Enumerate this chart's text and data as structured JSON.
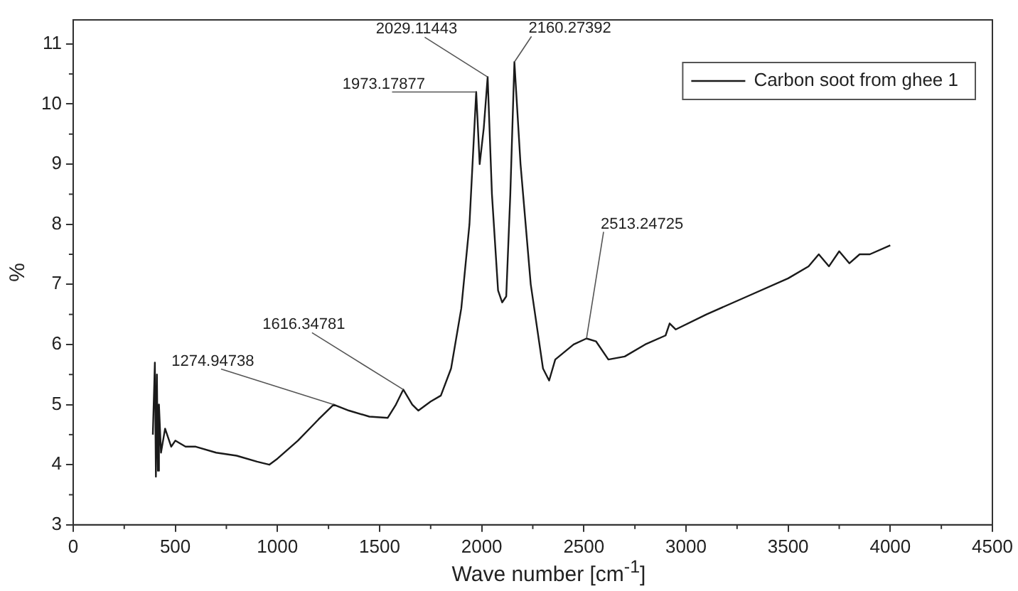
{
  "chart_data": {
    "type": "line",
    "xlabel": "Wave number [cm$^{-1}$]",
    "ylabel": "%",
    "xlim": [
      0,
      4500
    ],
    "xticks": [
      0,
      500,
      1000,
      1500,
      2000,
      2500,
      3000,
      3500,
      4000,
      4500
    ],
    "ylim": [
      3,
      11.4
    ],
    "yticks": [
      3,
      4,
      5,
      6,
      7,
      8,
      9,
      10,
      11
    ],
    "grid": false,
    "legend": "top right",
    "marker": "none",
    "line_style": "solid",
    "series": [
      {
        "name": "Carbon soot from ghee 1",
        "color": "#1a1a1a",
        "x": [
          390,
          400,
          405,
          410,
          415,
          420,
          430,
          450,
          480,
          500,
          550,
          600,
          700,
          800,
          900,
          960,
          1000,
          1100,
          1200,
          1275,
          1350,
          1450,
          1540,
          1580,
          1616,
          1660,
          1690,
          1750,
          1800,
          1850,
          1900,
          1940,
          1973,
          1990,
          2010,
          2029,
          2050,
          2080,
          2100,
          2120,
          2140,
          2160,
          2190,
          2240,
          2300,
          2330,
          2360,
          2450,
          2513,
          2560,
          2620,
          2700,
          2800,
          2900,
          2920,
          2950,
          3100,
          3300,
          3500,
          3600,
          3650,
          3700,
          3750,
          3800,
          3850,
          3900,
          4000
        ],
        "values": [
          4.5,
          5.7,
          3.8,
          5.5,
          3.9,
          5.0,
          4.2,
          4.6,
          4.3,
          4.4,
          4.3,
          4.3,
          4.2,
          4.15,
          4.05,
          4.0,
          4.1,
          4.4,
          4.75,
          5.0,
          4.9,
          4.8,
          4.78,
          5.0,
          5.25,
          5.0,
          4.9,
          5.05,
          5.15,
          5.6,
          6.6,
          8.0,
          10.2,
          9.0,
          9.6,
          10.45,
          8.5,
          6.9,
          6.7,
          6.8,
          8.5,
          10.7,
          9.0,
          7.0,
          5.6,
          5.4,
          5.75,
          6.0,
          6.1,
          6.05,
          5.75,
          5.8,
          6.0,
          6.15,
          6.35,
          6.25,
          6.5,
          6.8,
          7.1,
          7.3,
          7.5,
          7.3,
          7.55,
          7.35,
          7.5,
          7.5,
          7.65
        ]
      }
    ],
    "annotations": [
      {
        "text": "1274.94738",
        "x": 1275,
        "y": 5.0
      },
      {
        "text": "1616.34781",
        "x": 1616,
        "y": 5.25
      },
      {
        "text": "1973.17877",
        "x": 1973,
        "y": 10.2
      },
      {
        "text": "2029.11443",
        "x": 2029,
        "y": 10.45
      },
      {
        "text": "2160.27392",
        "x": 2160,
        "y": 10.7
      },
      {
        "text": "2513.24725",
        "x": 2513,
        "y": 6.1
      }
    ]
  }
}
